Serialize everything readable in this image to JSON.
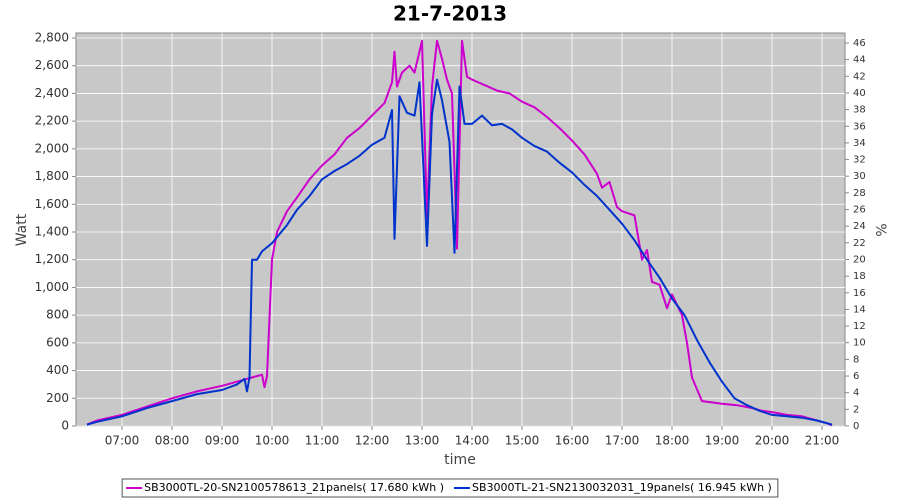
{
  "chart_data": {
    "type": "line",
    "title": "21-7-2013",
    "x_label": "time",
    "y_label": "Watt",
    "y2_label": "%",
    "xlim": [
      6.08,
      21.46
    ],
    "ylim": [
      0,
      2836
    ],
    "y2lim": [
      0,
      47.2
    ],
    "grid": true,
    "xticks": [
      {
        "value": 7,
        "label": "07:00"
      },
      {
        "value": 8,
        "label": "08:00"
      },
      {
        "value": 9,
        "label": "09:00"
      },
      {
        "value": 10,
        "label": "10:00"
      },
      {
        "value": 11,
        "label": "11:00"
      },
      {
        "value": 12,
        "label": "12:00"
      },
      {
        "value": 13,
        "label": "13:00"
      },
      {
        "value": 14,
        "label": "14:00"
      },
      {
        "value": 15,
        "label": "15:00"
      },
      {
        "value": 16,
        "label": "16:00"
      },
      {
        "value": 17,
        "label": "17:00"
      },
      {
        "value": 18,
        "label": "18:00"
      },
      {
        "value": 19,
        "label": "19:00"
      },
      {
        "value": 20,
        "label": "20:00"
      },
      {
        "value": 21,
        "label": "21:00"
      }
    ],
    "yticks": [
      0,
      200,
      400,
      600,
      800,
      {
        "value": 1000,
        "label": "1,000"
      },
      {
        "value": 1200,
        "label": "1,200"
      },
      {
        "value": 1400,
        "label": "1,400"
      },
      {
        "value": 1600,
        "label": "1,600"
      },
      {
        "value": 1800,
        "label": "1,800"
      },
      {
        "value": 2000,
        "label": "2,000"
      },
      {
        "value": 2200,
        "label": "2,200"
      },
      {
        "value": 2400,
        "label": "2,400"
      },
      {
        "value": 2600,
        "label": "2,600"
      },
      {
        "value": 2800,
        "label": "2,800"
      }
    ],
    "y2ticks": [
      0,
      2,
      4,
      6,
      8,
      10,
      12,
      14,
      16,
      18,
      20,
      22,
      24,
      26,
      28,
      30,
      32,
      34,
      36,
      38,
      40,
      42,
      44,
      46
    ],
    "series": [
      {
        "name": "SB3000TL-20-SN2100578613_21panels( 17.680 kWh )",
        "color": "#cc00cc",
        "x": [
          6.3,
          6.5,
          7.0,
          7.5,
          8.0,
          8.5,
          9.0,
          9.3,
          9.6,
          9.8,
          9.85,
          9.9,
          10.0,
          10.1,
          10.3,
          10.5,
          10.75,
          11.0,
          11.25,
          11.5,
          11.75,
          12.0,
          12.25,
          12.4,
          12.45,
          12.5,
          12.6,
          12.75,
          12.85,
          13.0,
          13.1,
          13.2,
          13.3,
          13.4,
          13.5,
          13.6,
          13.7,
          13.8,
          13.9,
          14.0,
          14.25,
          14.5,
          14.75,
          15.0,
          15.25,
          15.5,
          15.75,
          16.0,
          16.25,
          16.5,
          16.6,
          16.75,
          16.9,
          17.0,
          17.25,
          17.4,
          17.5,
          17.6,
          17.75,
          17.9,
          18.0,
          18.2,
          18.3,
          18.4,
          18.6,
          18.8,
          19.0,
          19.3,
          19.6,
          19.8,
          20.0,
          20.3,
          20.6,
          20.9,
          21.1,
          21.2
        ],
        "values": [
          10,
          40,
          80,
          140,
          200,
          250,
          290,
          320,
          350,
          370,
          280,
          360,
          1200,
          1400,
          1550,
          1650,
          1780,
          1880,
          1960,
          2080,
          2150,
          2240,
          2330,
          2480,
          2700,
          2450,
          2550,
          2600,
          2550,
          2780,
          1500,
          2450,
          2780,
          2650,
          2500,
          2400,
          1280,
          2780,
          2520,
          2500,
          2460,
          2420,
          2400,
          2340,
          2300,
          2230,
          2150,
          2060,
          1960,
          1820,
          1720,
          1760,
          1580,
          1550,
          1520,
          1200,
          1270,
          1040,
          1020,
          850,
          950,
          800,
          600,
          350,
          180,
          170,
          160,
          150,
          130,
          110,
          100,
          80,
          70,
          40,
          20,
          5
        ]
      },
      {
        "name": "SB3000TL-21-SN2130032031_19panels( 16.945 kWh )",
        "color": "#0033cc",
        "x": [
          6.3,
          6.5,
          7.0,
          7.5,
          8.0,
          8.5,
          9.0,
          9.3,
          9.45,
          9.5,
          9.55,
          9.6,
          9.7,
          9.8,
          10.0,
          10.3,
          10.5,
          10.75,
          11.0,
          11.25,
          11.5,
          11.75,
          12.0,
          12.25,
          12.4,
          12.45,
          12.55,
          12.7,
          12.85,
          12.95,
          13.1,
          13.2,
          13.3,
          13.4,
          13.55,
          13.65,
          13.75,
          13.85,
          14.0,
          14.2,
          14.4,
          14.6,
          14.8,
          15.0,
          15.25,
          15.5,
          15.75,
          16.0,
          16.25,
          16.5,
          16.75,
          17.0,
          17.25,
          17.5,
          17.75,
          18.0,
          18.25,
          18.5,
          18.75,
          19.0,
          19.25,
          19.5,
          19.75,
          20.0,
          20.3,
          20.6,
          20.9,
          21.1,
          21.2
        ],
        "values": [
          10,
          30,
          70,
          130,
          180,
          230,
          260,
          300,
          340,
          250,
          350,
          1200,
          1200,
          1260,
          1320,
          1450,
          1560,
          1660,
          1780,
          1840,
          1890,
          1950,
          2030,
          2080,
          2280,
          1350,
          2380,
          2260,
          2240,
          2480,
          1300,
          2250,
          2500,
          2350,
          2050,
          1250,
          2450,
          2180,
          2180,
          2240,
          2170,
          2180,
          2140,
          2080,
          2020,
          1980,
          1900,
          1830,
          1740,
          1660,
          1560,
          1460,
          1340,
          1200,
          1070,
          920,
          800,
          620,
          460,
          320,
          200,
          150,
          110,
          80,
          70,
          60,
          40,
          20,
          10
        ]
      }
    ]
  }
}
